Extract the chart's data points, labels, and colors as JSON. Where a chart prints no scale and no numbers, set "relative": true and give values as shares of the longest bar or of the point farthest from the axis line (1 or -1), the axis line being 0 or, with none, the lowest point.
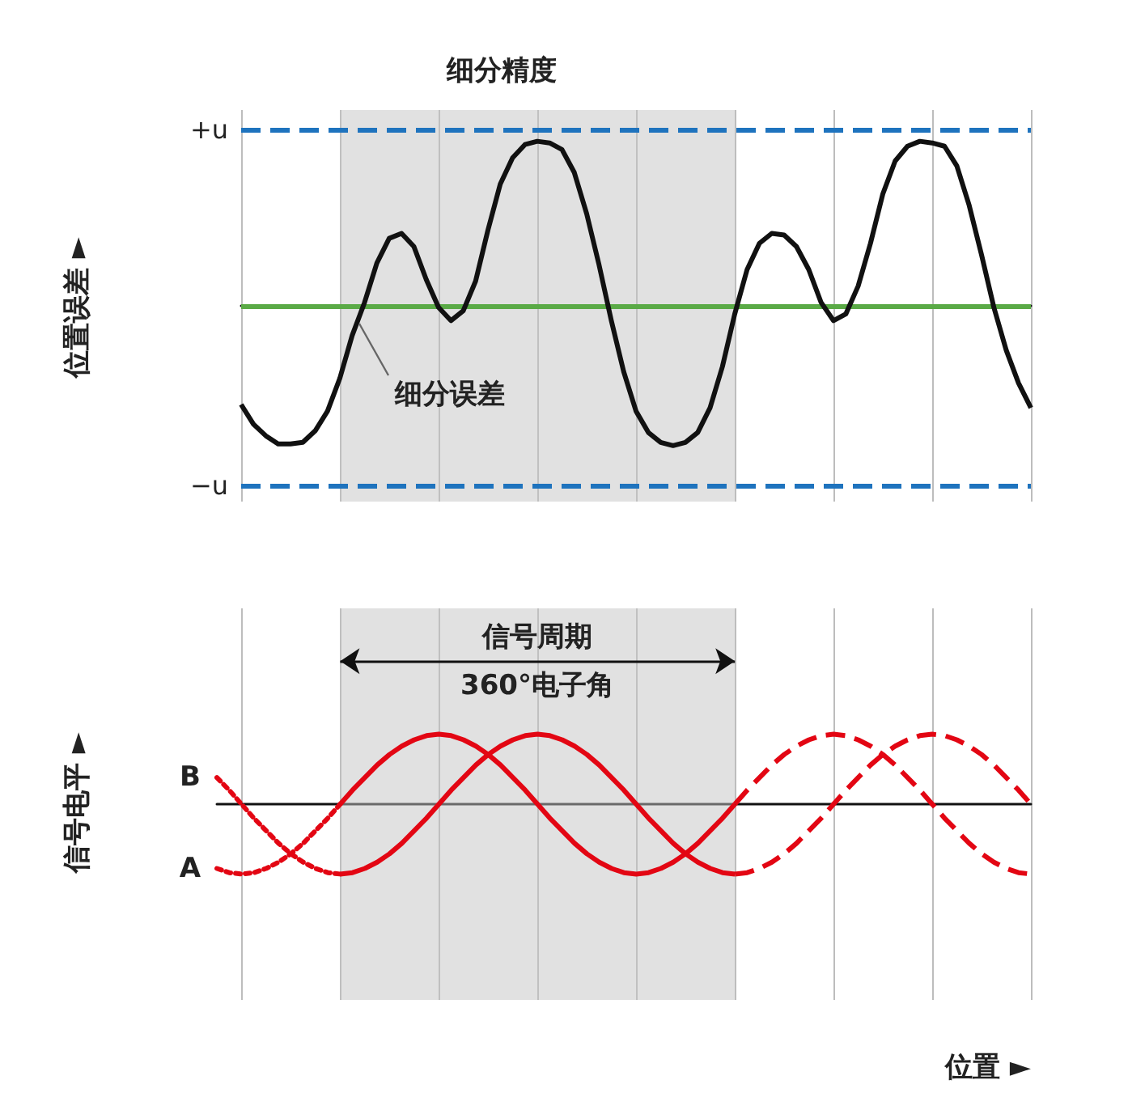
{
  "chart_data": [
    {
      "type": "line",
      "ylabel": "位置误差 ►",
      "relative": true,
      "grid": "x",
      "legend": false,
      "categories": [
        null,
        null,
        null,
        null,
        null,
        null,
        null,
        null,
        null,
        null,
        null,
        null,
        null,
        null,
        null,
        null,
        null,
        null,
        null,
        null,
        null,
        null,
        null,
        null,
        null,
        null,
        null,
        null,
        null,
        null,
        null,
        null,
        null,
        null,
        null,
        null,
        null,
        null,
        null,
        null,
        null,
        null,
        null,
        null,
        null,
        null,
        null,
        null,
        null,
        null,
        null,
        null,
        null,
        null,
        null,
        null,
        null,
        null,
        null,
        null,
        null,
        null,
        null,
        null,
        null
      ],
      "series": [
        {
          "color": "#111111",
          "values": [
            -0.6,
            -0.72,
            -0.79,
            -0.84,
            -0.84,
            -0.83,
            -0.76,
            -0.64,
            -0.44,
            -0.18,
            0.02,
            0.26,
            0.41,
            0.44,
            0.36,
            0.16,
            -0.01,
            -0.09,
            -0.03,
            0.15,
            0.46,
            0.74,
            0.9,
            0.98,
            1,
            0.99,
            0.95,
            0.81,
            0.56,
            0.25,
            -0.09,
            -0.4,
            -0.64,
            -0.77,
            -0.83,
            -0.85,
            -0.83,
            -0.77,
            -0.62,
            -0.37,
            -0.05,
            0.22,
            0.38,
            0.44,
            0.43,
            0.36,
            0.22,
            0.02,
            -0.09,
            -0.05,
            0.12,
            0.38,
            0.68,
            0.88,
            0.97,
            1,
            0.99,
            0.97,
            0.85,
            0.61,
            0.31,
            -0.01,
            -0.27,
            -0.47,
            -0.62
          ]
        }
      ],
      "ref_lines": [
        {
          "axis": "y",
          "value": 1.07,
          "label": "+u",
          "color": "#1e73be",
          "line_style": "dashed"
        },
        {
          "axis": "y",
          "value": -1.09,
          "label": "−u",
          "color": "#1e73be",
          "line_style": "dashed"
        },
        {
          "axis": "y",
          "value": 0,
          "color": "#5aaa46",
          "line_style": "solid"
        }
      ],
      "annotations": [
        "细分精度",
        "细分误差"
      ]
    },
    {
      "type": "line",
      "ylabel": "信号电平 ►",
      "xlabel": "位置 ►",
      "relative": true,
      "grid": "x",
      "legend": false,
      "categories": [
        null,
        null,
        null,
        null,
        null,
        null,
        null,
        null,
        null,
        null,
        null,
        null,
        null,
        null,
        null,
        null,
        null,
        null,
        null,
        null,
        null,
        null,
        null,
        null,
        null,
        null,
        null,
        null,
        null,
        null,
        null,
        null,
        null,
        null,
        null,
        null,
        null,
        null,
        null,
        null,
        null,
        null,
        null,
        null,
        null,
        null,
        null,
        null,
        null,
        null,
        null,
        null,
        null,
        null,
        null,
        null,
        null,
        null,
        null,
        null,
        null,
        null,
        null,
        null,
        null,
        null,
        null
      ],
      "series": [
        {
          "name": "B",
          "color": "#e30613",
          "line_style": "dotted",
          "values": [
            0.38,
            0.2,
            0,
            -0.2,
            -0.38,
            -0.56,
            -0.71,
            -0.83,
            -0.92,
            -0.98,
            -1,
            null,
            null,
            null,
            null,
            null,
            null,
            null,
            null,
            null,
            null,
            null,
            null,
            null,
            null,
            null,
            null,
            null,
            null,
            null,
            null,
            null,
            null,
            null,
            null,
            null,
            null,
            null,
            null,
            null,
            null,
            null,
            null,
            null,
            null,
            null,
            null,
            null,
            null,
            null,
            null,
            null,
            null,
            null,
            null,
            null,
            null,
            null,
            null,
            null,
            null,
            null,
            null,
            null,
            null,
            null,
            null
          ]
        },
        {
          "color": "#e30613",
          "line_style": "solid",
          "values": [
            null,
            null,
            null,
            null,
            null,
            null,
            null,
            null,
            null,
            null,
            -1,
            -0.98,
            -0.92,
            -0.83,
            -0.71,
            -0.56,
            -0.38,
            -0.2,
            0,
            0.2,
            0.38,
            0.56,
            0.71,
            0.83,
            0.92,
            0.98,
            1,
            0.98,
            0.92,
            0.83,
            0.71,
            0.56,
            0.38,
            0.2,
            0,
            -0.2,
            -0.38,
            -0.56,
            -0.71,
            -0.83,
            -0.92,
            -0.98,
            -1,
            null,
            null,
            null,
            null,
            null,
            null,
            null,
            null,
            null,
            null,
            null,
            null,
            null,
            null,
            null,
            null,
            null,
            null,
            null,
            null,
            null,
            null,
            null,
            null
          ]
        },
        {
          "color": "#e30613",
          "line_style": "dashed",
          "values": [
            null,
            null,
            null,
            null,
            null,
            null,
            null,
            null,
            null,
            null,
            null,
            null,
            null,
            null,
            null,
            null,
            null,
            null,
            null,
            null,
            null,
            null,
            null,
            null,
            null,
            null,
            null,
            null,
            null,
            null,
            null,
            null,
            null,
            null,
            null,
            null,
            null,
            null,
            null,
            null,
            null,
            null,
            -1,
            -0.98,
            -0.92,
            -0.83,
            -0.71,
            -0.56,
            -0.38,
            -0.2,
            0,
            0.2,
            0.38,
            0.56,
            0.71,
            0.83,
            0.92,
            0.98,
            1,
            0.98,
            0.92,
            0.83,
            0.71,
            0.56,
            0.38,
            0.2,
            0
          ]
        },
        {
          "name": "A",
          "color": "#e30613",
          "line_style": "dotted",
          "values": [
            -0.92,
            -0.98,
            -1,
            -0.98,
            -0.92,
            -0.83,
            -0.71,
            -0.56,
            -0.38,
            -0.2,
            0,
            null,
            null,
            null,
            null,
            null,
            null,
            null,
            null,
            null,
            null,
            null,
            null,
            null,
            null,
            null,
            null,
            null,
            null,
            null,
            null,
            null,
            null,
            null,
            null,
            null,
            null,
            null,
            null,
            null,
            null,
            null,
            null,
            null,
            null,
            null,
            null,
            null,
            null,
            null,
            null,
            null,
            null,
            null,
            null,
            null,
            null,
            null,
            null,
            null,
            null,
            null,
            null,
            null,
            null,
            null,
            null
          ]
        },
        {
          "color": "#e30613",
          "line_style": "solid",
          "values": [
            null,
            null,
            null,
            null,
            null,
            null,
            null,
            null,
            null,
            null,
            0,
            0.2,
            0.38,
            0.56,
            0.71,
            0.83,
            0.92,
            0.98,
            1,
            0.98,
            0.92,
            0.83,
            0.71,
            0.56,
            0.38,
            0.2,
            0,
            -0.2,
            -0.38,
            -0.56,
            -0.71,
            -0.83,
            -0.92,
            -0.98,
            -1,
            -0.98,
            -0.92,
            -0.83,
            -0.71,
            -0.56,
            -0.38,
            -0.2,
            0,
            null,
            null,
            null,
            null,
            null,
            null,
            null,
            null,
            null,
            null,
            null,
            null,
            null,
            null,
            null,
            null,
            null,
            null,
            null,
            null,
            null,
            null,
            null,
            null
          ]
        },
        {
          "color": "#e30613",
          "line_style": "dashed",
          "values": [
            null,
            null,
            null,
            null,
            null,
            null,
            null,
            null,
            null,
            null,
            null,
            null,
            null,
            null,
            null,
            null,
            null,
            null,
            null,
            null,
            null,
            null,
            null,
            null,
            null,
            null,
            null,
            null,
            null,
            null,
            null,
            null,
            null,
            null,
            null,
            null,
            null,
            null,
            null,
            null,
            null,
            null,
            0,
            0.2,
            0.38,
            0.56,
            0.71,
            0.83,
            0.92,
            0.98,
            1,
            0.98,
            0.92,
            0.83,
            0.71,
            0.56,
            0.38,
            0.2,
            0,
            -0.2,
            -0.38,
            -0.56,
            -0.71,
            -0.83,
            -0.92,
            -0.98,
            -1
          ]
        }
      ],
      "annotations": [
        "信号周期",
        "360°电子角"
      ]
    }
  ]
}
